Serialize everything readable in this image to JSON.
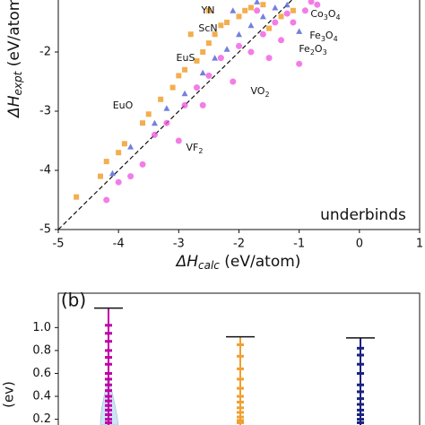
{
  "chart_data": [
    {
      "type": "scatter",
      "x_label": {
        "main": "ΔH",
        "sub": "calc",
        "unit": " (eV/atom)"
      },
      "y_label": {
        "main": "ΔH",
        "sub": "expt",
        "unit": " (eV/atom)"
      },
      "xlim": [
        -5,
        1
      ],
      "ylim": [
        -5,
        -1.1
      ],
      "xticks": [
        -5,
        -4,
        -3,
        -2,
        -1,
        0,
        1
      ],
      "yticks": [
        -5,
        -4,
        -3,
        -2
      ],
      "diagonal": true,
      "annotations": [
        {
          "text": [
            "YN"
          ]
        },
        {
          "text": [
            "ScN"
          ]
        },
        {
          "text": [
            "EuS"
          ]
        },
        {
          "text": [
            "EuO"
          ]
        },
        {
          "text": [
            "VF",
            "2"
          ]
        },
        {
          "text": [
            "VO",
            "2"
          ]
        },
        {
          "text": [
            "Co",
            "3",
            "O",
            "4"
          ]
        },
        {
          "text": [
            "Fe",
            "3",
            "O",
            "4"
          ]
        },
        {
          "text": [
            "Fe",
            "2",
            "O",
            "3"
          ]
        },
        {
          "text": [
            "underbinds"
          ]
        }
      ],
      "series": [
        {
          "marker": "square",
          "color": "#f0a030",
          "x": [
            -4.7,
            -4.3,
            -4.2,
            -4.0,
            -3.9,
            -3.6,
            -3.5,
            -3.3,
            -3.1,
            -3.0,
            -2.9,
            -2.7,
            -2.6,
            -2.5,
            -2.4,
            -2.3,
            -2.2,
            -2.0,
            -1.9,
            -1.8,
            -1.6,
            -1.5,
            -1.3,
            -1.1,
            -2.8,
            -2.5
          ],
          "values": [
            -4.45,
            -4.1,
            -3.85,
            -3.7,
            -3.55,
            -3.2,
            -3.05,
            -2.8,
            -2.6,
            -2.4,
            -2.3,
            -2.15,
            -2.0,
            -1.85,
            -1.7,
            -1.55,
            -1.5,
            -1.4,
            -1.3,
            -1.25,
            -1.2,
            -1.6,
            -1.4,
            -1.3,
            -1.7,
            -1.3
          ]
        },
        {
          "marker": "triangle",
          "color": "#5a6ad8",
          "x": [
            -4.1,
            -3.8,
            -3.4,
            -3.2,
            -2.9,
            -2.6,
            -2.4,
            -2.2,
            -2.0,
            -1.8,
            -1.6,
            -1.4,
            -1.2,
            -1.0,
            -1.7,
            -2.1
          ],
          "values": [
            -4.05,
            -3.6,
            -3.2,
            -2.95,
            -2.7,
            -2.35,
            -2.1,
            -1.95,
            -1.7,
            -1.55,
            -1.4,
            -1.25,
            -1.2,
            -1.65,
            -1.15,
            -1.3
          ]
        },
        {
          "marker": "circle",
          "color": "#ee44dd",
          "x": [
            -4.2,
            -4.0,
            -3.6,
            -3.4,
            -3.2,
            -3.0,
            -2.9,
            -2.7,
            -2.5,
            -2.3,
            -2.1,
            -2.0,
            -1.8,
            -1.6,
            -1.5,
            -1.3,
            -1.1,
            -0.9,
            -1.2,
            -0.8,
            -1.0,
            -1.4,
            -1.7,
            -0.7,
            -2.6,
            -3.8
          ],
          "values": [
            -4.5,
            -4.2,
            -3.9,
            -3.4,
            -3.2,
            -3.5,
            -2.9,
            -2.6,
            -2.4,
            -2.1,
            -2.5,
            -1.9,
            -2.0,
            -1.7,
            -2.1,
            -1.8,
            -1.5,
            -1.3,
            -1.35,
            -1.15,
            -2.2,
            -1.5,
            -1.3,
            -1.2,
            -2.9,
            -4.1
          ]
        }
      ]
    },
    {
      "type": "errorbar",
      "panel_label": "(b)",
      "y_label": "(ev)",
      "ylim": [
        0.15,
        1.3
      ],
      "yticks": [
        {
          "value": 0.2,
          "label": "0.2"
        },
        {
          "value": 0.4,
          "label": "0.4"
        },
        {
          "value": 0.6,
          "label": "0.6"
        },
        {
          "value": 0.8,
          "label": "0.8"
        },
        {
          "value": 1.0,
          "label": "1.0"
        }
      ],
      "series": [
        {
          "color": "#c000a8",
          "values": [
            1.17
          ],
          "points": [
            1.02,
            0.95,
            0.88,
            0.8,
            0.74,
            0.68,
            0.6,
            0.55,
            0.5,
            0.45,
            0.4,
            0.36,
            0.32,
            0.28,
            0.24,
            0.2,
            0.17
          ]
        },
        {
          "color": "#f0a030",
          "values": [
            0.92
          ],
          "points": [
            0.85,
            0.75,
            0.64,
            0.55,
            0.47,
            0.4,
            0.35,
            0.3,
            0.26,
            0.22,
            0.19,
            0.17
          ]
        },
        {
          "color": "#1a237e",
          "values": [
            0.91
          ],
          "points": [
            0.82,
            0.76,
            0.68,
            0.6,
            0.5,
            0.44,
            0.38,
            0.33,
            0.28,
            0.24,
            0.2,
            0.17
          ]
        }
      ]
    }
  ]
}
